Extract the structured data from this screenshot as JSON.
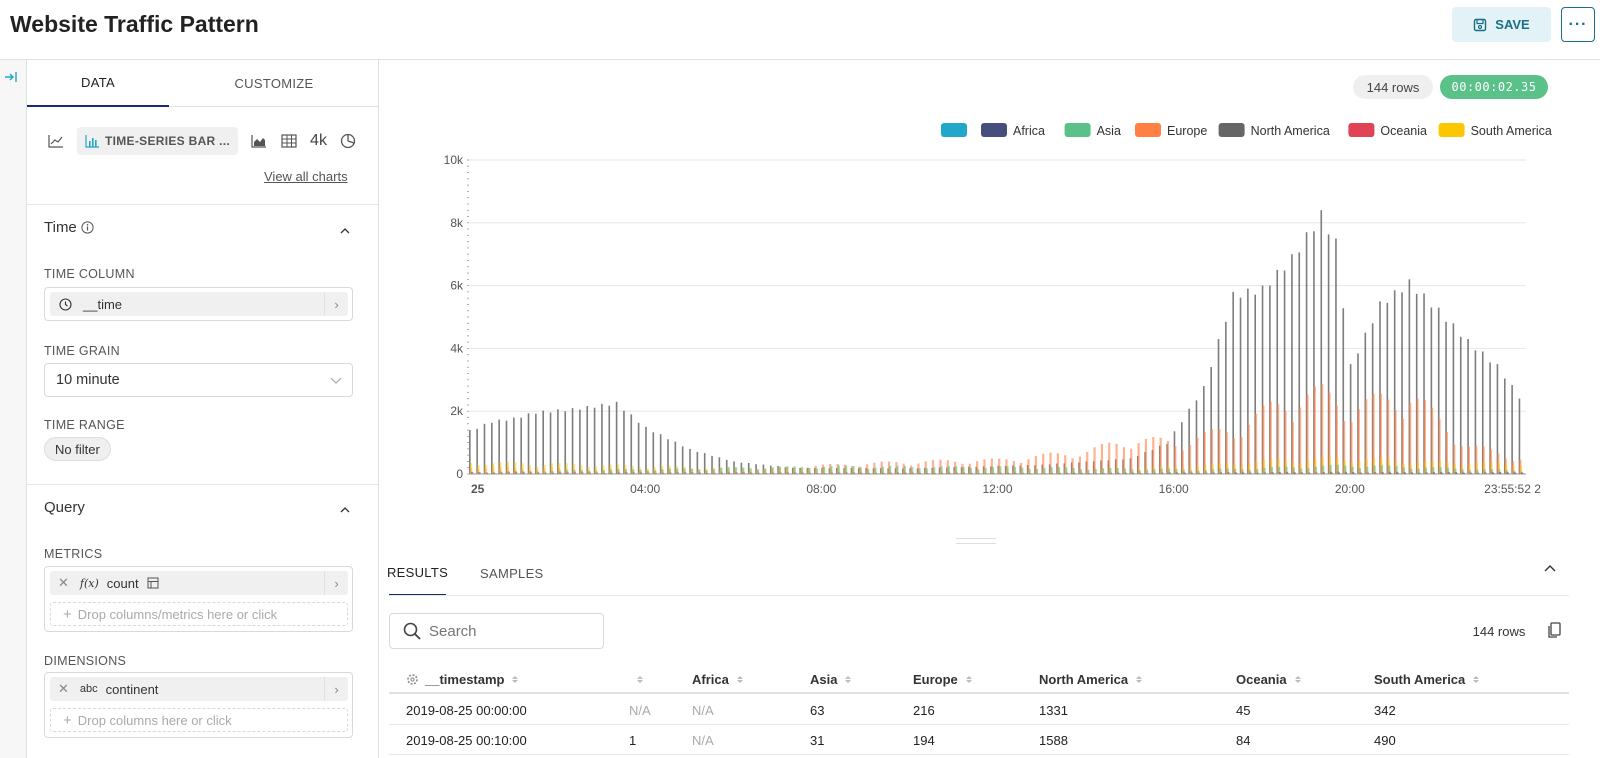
{
  "header": {
    "title": "Website Traffic Pattern",
    "save_label": "SAVE",
    "more_label": "···"
  },
  "panel": {
    "tabs": [
      "DATA",
      "CUSTOMIZE"
    ],
    "viz_selected_label": "TIME-SERIES BAR ...",
    "viz_big_number_label": "4k",
    "view_all_label": "View all charts",
    "time_section": {
      "title": "Time",
      "time_column_label": "TIME COLUMN",
      "time_column_value": "__time",
      "time_grain_label": "TIME GRAIN",
      "time_grain_value": "10 minute",
      "time_range_label": "TIME RANGE",
      "time_range_value": "No filter"
    },
    "query_section": {
      "title": "Query",
      "metrics_label": "METRICS",
      "metric_value": "count",
      "metric_fx": "f(x)",
      "metrics_drop": "Drop columns/metrics here or click",
      "dimensions_label": "DIMENSIONS",
      "dimension_type": "abc",
      "dimension_value": "continent",
      "dimensions_drop": "Drop columns here or click"
    }
  },
  "chart": {
    "rows_badge": "144 rows",
    "timer": "00:00:02.35"
  },
  "chart_data": {
    "type": "bar",
    "title": "",
    "xlabel": "",
    "ylabel": "",
    "ylim": [
      0,
      10000
    ],
    "yticks": [
      "0",
      "2k",
      "4k",
      "6k",
      "8k",
      "10k"
    ],
    "xticks": [
      "25",
      "04:00",
      "08:00",
      "12:00",
      "16:00",
      "20:00",
      "23:55:52 2"
    ],
    "legend_position": "top-right",
    "legend": [
      {
        "name": "",
        "color": "#20a7c9"
      },
      {
        "name": "Africa",
        "color": "#454e7c"
      },
      {
        "name": "Asia",
        "color": "#5ac189"
      },
      {
        "name": "Europe",
        "color": "#ff7f44"
      },
      {
        "name": "North America",
        "color": "#666666"
      },
      {
        "name": "Oceania",
        "color": "#e04355"
      },
      {
        "name": "South America",
        "color": "#fcc700"
      }
    ],
    "interval_minutes": 10,
    "bar_count": 144,
    "series_profiles": {
      "North America": [
        [
          0,
          1400
        ],
        [
          3,
          1700
        ],
        [
          6,
          1800
        ],
        [
          9,
          2000
        ],
        [
          14,
          2100
        ],
        [
          20,
          2300
        ],
        [
          24,
          1500
        ],
        [
          30,
          800
        ],
        [
          36,
          400
        ],
        [
          44,
          200
        ],
        [
          60,
          180
        ],
        [
          78,
          300
        ],
        [
          90,
          500
        ],
        [
          95,
          1000
        ],
        [
          100,
          2800
        ],
        [
          104,
          5800
        ],
        [
          108,
          6000
        ],
        [
          112,
          7000
        ],
        [
          116,
          8400
        ],
        [
          118,
          7500
        ],
        [
          120,
          3500
        ],
        [
          124,
          5500
        ],
        [
          128,
          6200
        ],
        [
          132,
          5300
        ],
        [
          136,
          4300
        ],
        [
          140,
          3500
        ],
        [
          143,
          2500
        ]
      ],
      "Europe": [
        [
          0,
          200
        ],
        [
          20,
          120
        ],
        [
          36,
          80
        ],
        [
          48,
          250
        ],
        [
          60,
          350
        ],
        [
          72,
          400
        ],
        [
          84,
          650
        ],
        [
          90,
          1000
        ],
        [
          96,
          900
        ],
        [
          104,
          1300
        ],
        [
          112,
          2200
        ],
        [
          116,
          2300
        ],
        [
          120,
          1900
        ],
        [
          128,
          2300
        ],
        [
          132,
          1500
        ],
        [
          136,
          800
        ],
        [
          143,
          450
        ]
      ],
      "South America": [
        [
          0,
          340
        ],
        [
          30,
          200
        ],
        [
          60,
          100
        ],
        [
          90,
          150
        ],
        [
          100,
          250
        ],
        [
          110,
          400
        ],
        [
          120,
          450
        ],
        [
          130,
          350
        ],
        [
          143,
          300
        ]
      ],
      "Asia": [
        [
          0,
          60
        ],
        [
          30,
          150
        ],
        [
          48,
          220
        ],
        [
          72,
          200
        ],
        [
          100,
          120
        ],
        [
          120,
          250
        ],
        [
          143,
          100
        ]
      ],
      "Oceania": [
        [
          0,
          45
        ],
        [
          40,
          40
        ],
        [
          80,
          30
        ],
        [
          120,
          60
        ],
        [
          143,
          50
        ]
      ],
      "Africa": [
        [
          0,
          0
        ],
        [
          143,
          30
        ]
      ],
      "Unknown": [
        [
          0,
          0
        ],
        [
          143,
          10
        ]
      ]
    }
  },
  "results": {
    "tabs": [
      "RESULTS",
      "SAMPLES"
    ],
    "search_placeholder": "Search",
    "rows_badge": "144 rows",
    "columns": [
      "__timestamp",
      "",
      "Africa",
      "Asia",
      "Europe",
      "North America",
      "Oceania",
      "South America"
    ],
    "rows": [
      [
        "2019-08-25 00:00:00",
        "N/A",
        "N/A",
        "63",
        "216",
        "1331",
        "45",
        "342"
      ],
      [
        "2019-08-25 00:10:00",
        "1",
        "N/A",
        "31",
        "194",
        "1588",
        "84",
        "490"
      ]
    ]
  }
}
